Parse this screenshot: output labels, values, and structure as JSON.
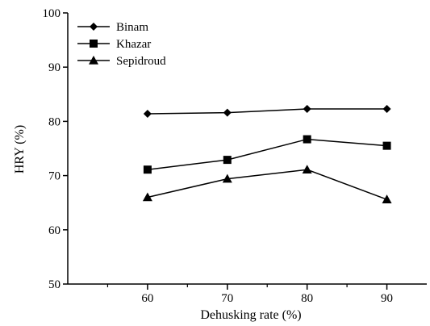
{
  "chart_data": {
    "type": "line",
    "title": "",
    "xlabel": "Dehusking rate (%)",
    "ylabel": "HRY (%)",
    "x": [
      60,
      70,
      80,
      90
    ],
    "x_ticks": [
      "60",
      "70",
      "80",
      "90"
    ],
    "xlim": [
      50,
      95
    ],
    "ylim": [
      50,
      100
    ],
    "y_ticks": [
      "50",
      "60",
      "70",
      "80",
      "90",
      "100"
    ],
    "y_tick_values": [
      50,
      60,
      70,
      80,
      90,
      100
    ],
    "grid": false,
    "legend": "top-left",
    "series": [
      {
        "name": "Binam",
        "marker": "diamond",
        "color": "#000000",
        "values": [
          81.4,
          81.6,
          82.3,
          82.3
        ]
      },
      {
        "name": "Khazar",
        "marker": "square",
        "color": "#000000",
        "values": [
          71.1,
          72.9,
          76.7,
          75.5
        ]
      },
      {
        "name": "Sepidroud",
        "marker": "triangle",
        "color": "#000000",
        "values": [
          66.0,
          69.4,
          71.1,
          65.6
        ]
      }
    ]
  }
}
